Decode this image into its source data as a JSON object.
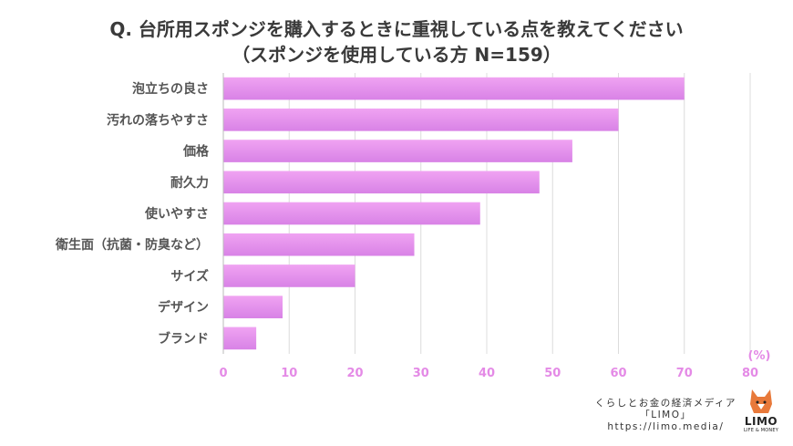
{
  "title": {
    "line1": "Q. 台所用スポンジを購入するときに重視している点を教えてください",
    "line2": "（スポンジを使用している方 N=159）"
  },
  "chart_data": {
    "type": "bar",
    "orientation": "horizontal",
    "categories": [
      "泡立ちの良さ",
      "汚れの落ちやすさ",
      "価格",
      "耐久力",
      "使いやすさ",
      "衛生面（抗菌・防臭など）",
      "サイズ",
      "デザイン",
      "ブランド"
    ],
    "values": [
      70,
      60,
      53,
      48,
      39,
      29,
      20,
      9,
      5
    ],
    "xlim": [
      0,
      80
    ],
    "xticks": [
      "0",
      "10",
      "20",
      "30",
      "40",
      "50",
      "60",
      "70",
      "80"
    ],
    "unit_label": "(%)",
    "grid": true,
    "bar_color_top": "#f0a3f2",
    "bar_color_bottom": "#d882e6",
    "axis_text_color": "#e48ae6"
  },
  "footer": {
    "line1": "くらしとお金の経済メディア",
    "line2": "「LIMO」",
    "line3": "https://limo.media/"
  },
  "logo": {
    "name": "LIMO",
    "sub": "LIFE & MONEY"
  }
}
